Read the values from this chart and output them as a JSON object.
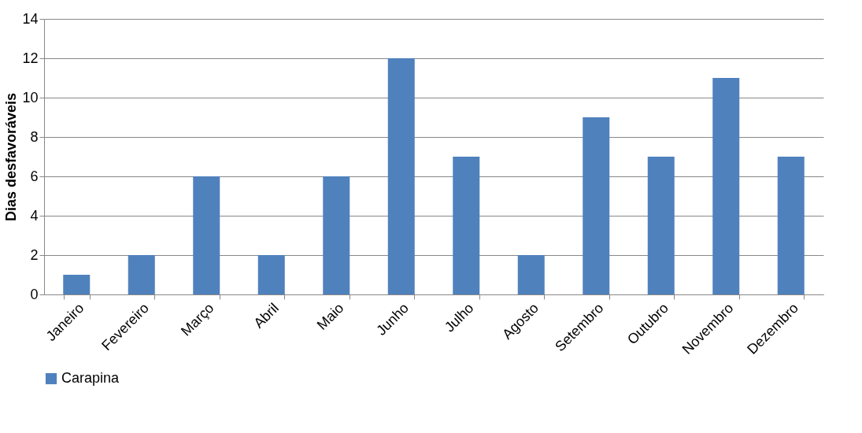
{
  "chart_data": {
    "type": "bar",
    "ylabel": "Dias desfavoráveis",
    "categories": [
      "Janeiro",
      "Fevereiro",
      "Março",
      "Abril",
      "Maio",
      "Junho",
      "Julho",
      "Agosto",
      "Setembro",
      "Outubro",
      "Novembro",
      "Dezembro"
    ],
    "series": [
      {
        "name": "Carapina",
        "color": "#4f81bd",
        "values": [
          1,
          2,
          6,
          2,
          6,
          12,
          7,
          2,
          9,
          7,
          11,
          7
        ]
      }
    ],
    "ylim": [
      0,
      14
    ],
    "yticks": [
      0,
      2,
      4,
      6,
      8,
      10,
      12,
      14
    ],
    "grid": "y",
    "legend": "bottom"
  }
}
